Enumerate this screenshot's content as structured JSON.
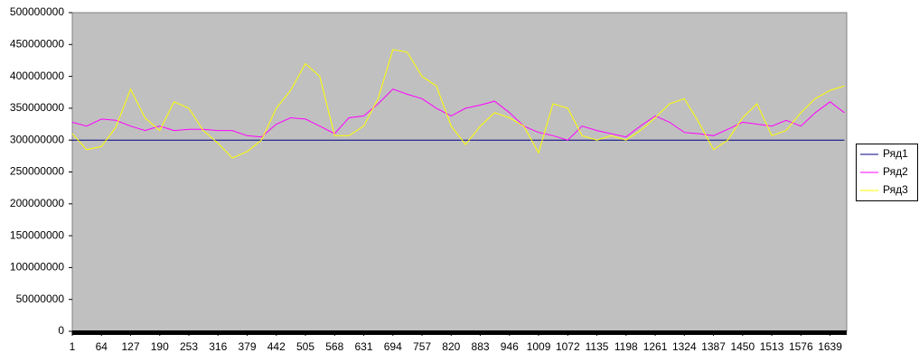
{
  "chart_data": {
    "type": "line",
    "x": [
      1,
      32,
      64,
      95,
      127,
      158,
      190,
      221,
      253,
      284,
      316,
      347,
      379,
      410,
      442,
      473,
      505,
      536,
      568,
      599,
      631,
      662,
      694,
      725,
      757,
      788,
      820,
      851,
      883,
      914,
      946,
      977,
      1009,
      1040,
      1072,
      1103,
      1135,
      1166,
      1198,
      1229,
      1261,
      1292,
      1324,
      1355,
      1387,
      1418,
      1450,
      1481,
      1513,
      1544,
      1576,
      1607,
      1639,
      1670
    ],
    "xlim": [
      1,
      1675
    ],
    "xticks": [
      1,
      64,
      127,
      190,
      253,
      316,
      379,
      442,
      505,
      568,
      631,
      694,
      757,
      820,
      883,
      946,
      1009,
      1072,
      1135,
      1198,
      1261,
      1324,
      1387,
      1450,
      1513,
      1576,
      1639
    ],
    "ylim": [
      0,
      500000000
    ],
    "yticks": [
      0,
      50000000,
      100000000,
      150000000,
      200000000,
      250000000,
      300000000,
      350000000,
      400000000,
      450000000,
      500000000
    ],
    "legend": "right",
    "series": [
      {
        "name": "Ряд1",
        "color": "#000080",
        "values": [
          300000000,
          300000000,
          300000000,
          300000000,
          300000000,
          300000000,
          300000000,
          300000000,
          300000000,
          300000000,
          300000000,
          300000000,
          300000000,
          300000000,
          300000000,
          300000000,
          300000000,
          300000000,
          300000000,
          300000000,
          300000000,
          300000000,
          300000000,
          300000000,
          300000000,
          300000000,
          300000000,
          300000000,
          300000000,
          300000000,
          300000000,
          300000000,
          300000000,
          300000000,
          300000000,
          300000000,
          300000000,
          300000000,
          300000000,
          300000000,
          300000000,
          300000000,
          300000000,
          300000000,
          300000000,
          300000000,
          300000000,
          300000000,
          300000000,
          300000000,
          300000000,
          300000000,
          300000000,
          300000000
        ]
      },
      {
        "name": "Ряд2",
        "color": "#ff00ff",
        "values": [
          328000000,
          322000000,
          333000000,
          331000000,
          322000000,
          315000000,
          322000000,
          315000000,
          317000000,
          317000000,
          315000000,
          315000000,
          307000000,
          305000000,
          325000000,
          335000000,
          333000000,
          322000000,
          310000000,
          335000000,
          338000000,
          357000000,
          380000000,
          372000000,
          365000000,
          350000000,
          338000000,
          350000000,
          355000000,
          361000000,
          343000000,
          322000000,
          312000000,
          307000000,
          300000000,
          322000000,
          315000000,
          310000000,
          305000000,
          322000000,
          338000000,
          328000000,
          312000000,
          310000000,
          307000000,
          317000000,
          328000000,
          325000000,
          322000000,
          331000000,
          322000000,
          343000000,
          360000000,
          343000000
        ]
      },
      {
        "name": "Ряд3",
        "color": "#ffff00",
        "values": [
          310000000,
          285000000,
          290000000,
          320000000,
          380000000,
          335000000,
          315000000,
          360000000,
          350000000,
          315000000,
          295000000,
          272000000,
          282000000,
          300000000,
          350000000,
          378000000,
          420000000,
          400000000,
          307000000,
          307000000,
          322000000,
          365000000,
          442000000,
          438000000,
          400000000,
          385000000,
          322000000,
          293000000,
          322000000,
          343000000,
          335000000,
          322000000,
          280000000,
          357000000,
          350000000,
          307000000,
          300000000,
          307000000,
          300000000,
          315000000,
          335000000,
          357000000,
          365000000,
          328000000,
          285000000,
          300000000,
          335000000,
          357000000,
          307000000,
          315000000,
          343000000,
          365000000,
          378000000,
          385000000
        ]
      }
    ]
  }
}
